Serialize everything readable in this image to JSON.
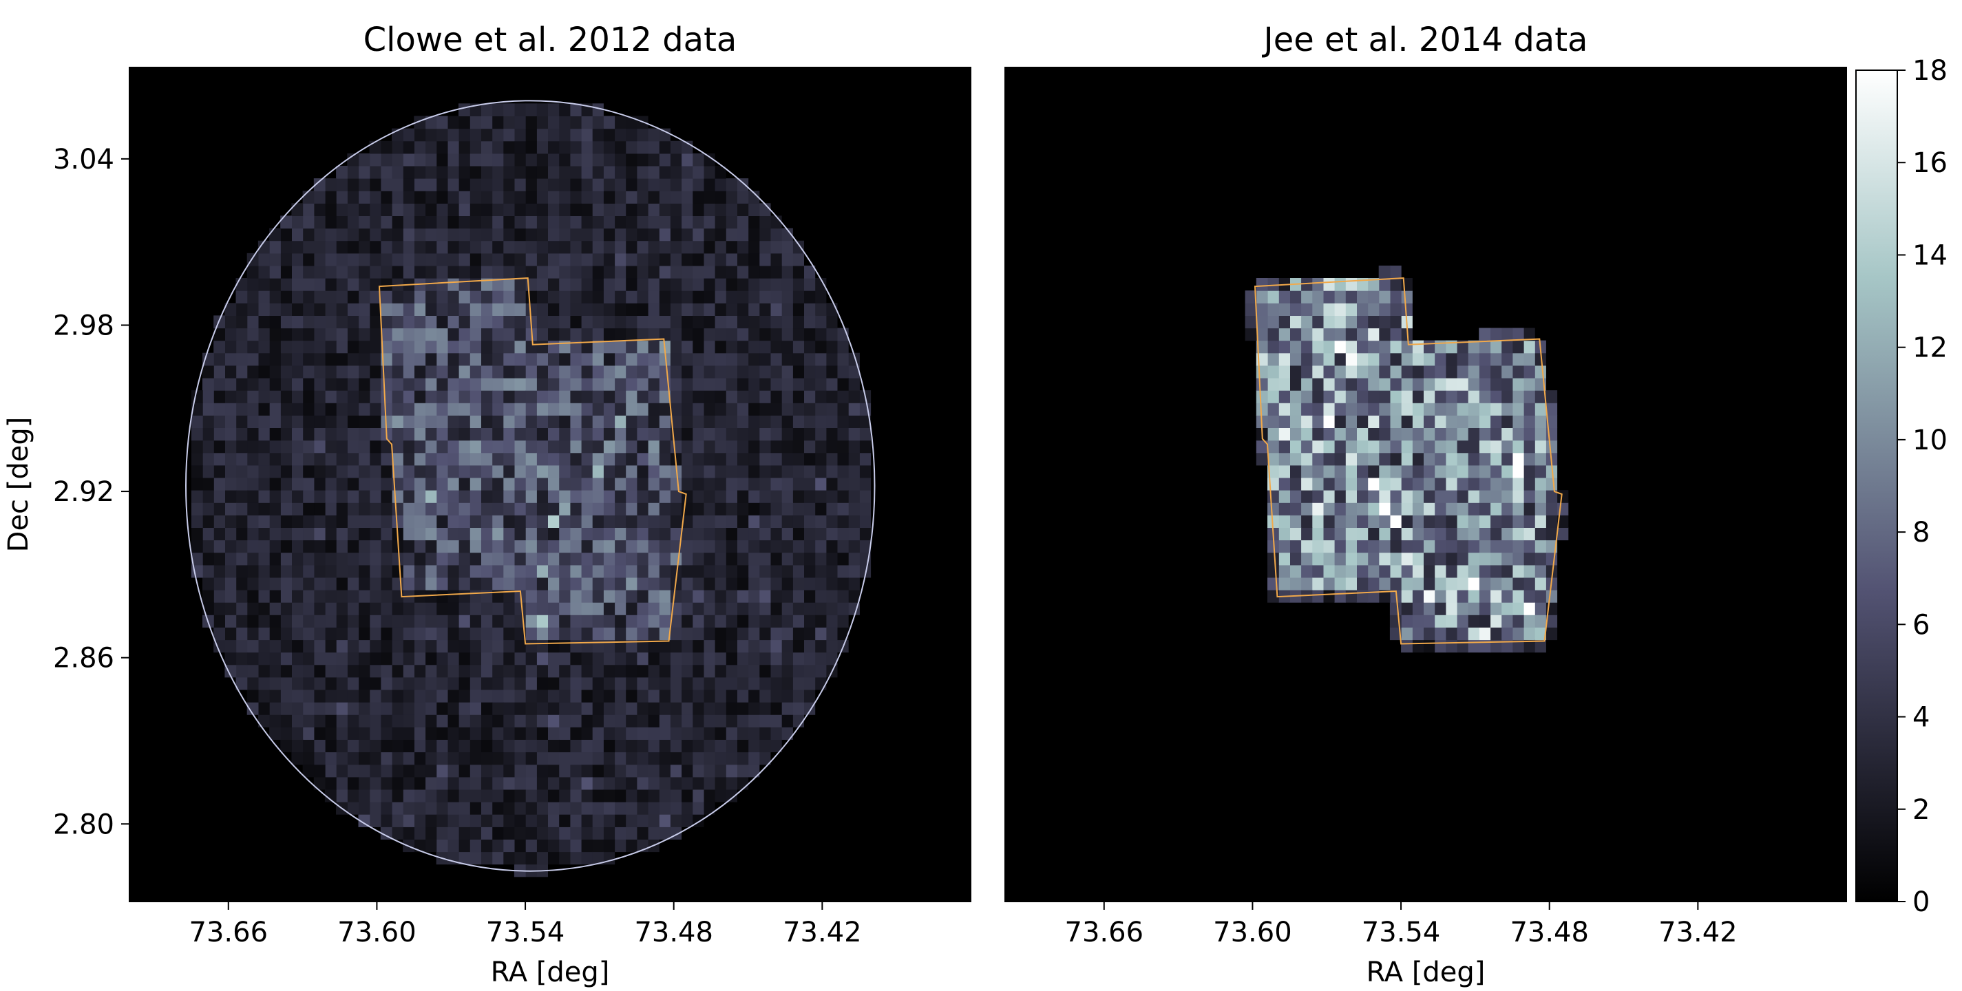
{
  "chart_data": [
    {
      "type": "heatmap",
      "title": "Clowe et al. 2012 data",
      "xlabel": "RA [deg]",
      "ylabel": "Dec [deg]",
      "xlim": [
        73.7,
        73.36
      ],
      "ylim": [
        2.772,
        3.073
      ],
      "xticks": [
        73.66,
        73.6,
        73.54,
        73.48,
        73.42
      ],
      "xtick_labels": [
        "73.66",
        "73.60",
        "73.54",
        "73.48",
        "73.42"
      ],
      "yticks": [
        3.04,
        2.98,
        2.92,
        2.86,
        2.8
      ],
      "ytick_labels": [
        "3.04",
        "2.98",
        "2.92",
        "2.86",
        "2.80"
      ],
      "colormap": "bone",
      "field_circle": {
        "center_ra": 73.538,
        "center_dec": 2.922,
        "radius_deg": 0.139,
        "color": "#c8ccea"
      },
      "footprint_color": "#f2a94a",
      "footprint": [
        [
          73.599,
          2.994
        ],
        [
          73.539,
          2.997
        ],
        [
          73.537,
          2.973
        ],
        [
          73.484,
          2.975
        ],
        [
          73.478,
          2.92
        ],
        [
          73.475,
          2.919
        ],
        [
          73.482,
          2.866
        ],
        [
          73.54,
          2.865
        ],
        [
          73.542,
          2.884
        ],
        [
          73.59,
          2.882
        ],
        [
          73.594,
          2.937
        ],
        [
          73.596,
          2.939
        ]
      ],
      "levels": {
        "outside": 0,
        "field": 2.8,
        "footprint": 6.0
      },
      "bin_size_deg": 0.0045
    },
    {
      "type": "heatmap",
      "title": "Jee et al. 2014 data",
      "xlabel": "RA [deg]",
      "ylabel": "",
      "xlim": [
        73.7,
        73.36
      ],
      "ylim": [
        2.772,
        3.073
      ],
      "xticks": [
        73.66,
        73.6,
        73.54,
        73.48,
        73.42
      ],
      "xtick_labels": [
        "73.66",
        "73.60",
        "73.54",
        "73.48",
        "73.42"
      ],
      "colormap": "bone",
      "footprint_color": "#f2a94a",
      "footprint": [
        [
          73.599,
          2.994
        ],
        [
          73.539,
          2.997
        ],
        [
          73.537,
          2.973
        ],
        [
          73.484,
          2.975
        ],
        [
          73.478,
          2.92
        ],
        [
          73.475,
          2.919
        ],
        [
          73.482,
          2.866
        ],
        [
          73.54,
          2.865
        ],
        [
          73.542,
          2.884
        ],
        [
          73.59,
          2.882
        ],
        [
          73.594,
          2.937
        ],
        [
          73.596,
          2.939
        ]
      ],
      "levels": {
        "outside": 0,
        "field": 0,
        "footprint": 9.5
      },
      "bin_size_deg": 0.0045
    }
  ],
  "colorbar": {
    "range": [
      0,
      18
    ],
    "ticks": [
      0,
      2,
      4,
      6,
      8,
      10,
      12,
      14,
      16,
      18
    ],
    "tick_labels": [
      "0",
      "2",
      "4",
      "6",
      "8",
      "10",
      "12",
      "14",
      "16",
      "18"
    ]
  }
}
